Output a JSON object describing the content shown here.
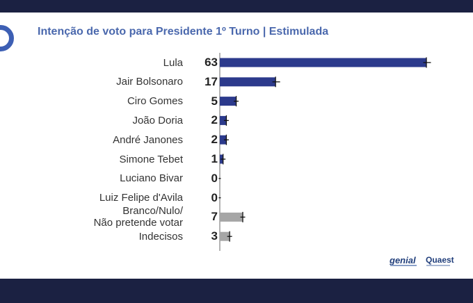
{
  "title": "Intenção de voto para Presidente 1º Turno | Estimulada",
  "logos": {
    "genial": "genial",
    "quaest": "Quaest"
  },
  "colors": {
    "candidate_bar": "#2c3a8c",
    "other_bar": "#a6a6a6",
    "top_bar": "#1b2142",
    "bottom_bar": "#1b2142",
    "title": "#4a68ad",
    "logo_mark": "#3d5fb4"
  },
  "chart_data": {
    "type": "bar",
    "orientation": "horizontal",
    "title": "Intenção de voto para Presidente 1º Turno | Estimulada",
    "categories": [
      "Lula",
      "Jair Bolsonaro",
      "Ciro Gomes",
      "João Doria",
      "André Janones",
      "Simone Tebet",
      "Luciano Bivar",
      "Luiz Felipe d'Avila",
      "Branco/Nulo/\nNão pretende votar",
      "Indecisos"
    ],
    "values": [
      63,
      17,
      5,
      2,
      2,
      1,
      0,
      0,
      7,
      3
    ],
    "value_labels": [
      "63",
      "17",
      "5",
      "2",
      "2",
      "1",
      "0",
      "0",
      "7",
      "3"
    ],
    "bar_groups": [
      "candidate",
      "candidate",
      "candidate",
      "candidate",
      "candidate",
      "candidate",
      "candidate",
      "candidate",
      "other",
      "other"
    ],
    "error_bars": true,
    "xlim": [
      0,
      70
    ],
    "grid": false,
    "legend": "none"
  }
}
